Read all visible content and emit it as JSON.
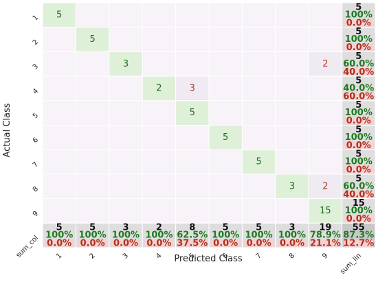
{
  "chart_data": {
    "type": "heatmap",
    "title": "",
    "xlabel": "Predicted Class",
    "ylabel": "Actual Class",
    "x_tick_labels": [
      "1",
      "2",
      "3",
      "4",
      "5",
      "6",
      "7",
      "8",
      "9",
      "sum_lin"
    ],
    "y_tick_labels": [
      "1",
      "2",
      "3",
      "4",
      "5",
      "6",
      "7",
      "8",
      "9",
      "sum_col"
    ],
    "matrix": [
      [
        5,
        0,
        0,
        0,
        0,
        0,
        0,
        0,
        0
      ],
      [
        0,
        5,
        0,
        0,
        0,
        0,
        0,
        0,
        0
      ],
      [
        0,
        0,
        3,
        0,
        0,
        0,
        0,
        0,
        2
      ],
      [
        0,
        0,
        0,
        2,
        3,
        0,
        0,
        0,
        0
      ],
      [
        0,
        0,
        0,
        0,
        5,
        0,
        0,
        0,
        0
      ],
      [
        0,
        0,
        0,
        0,
        0,
        5,
        0,
        0,
        0
      ],
      [
        0,
        0,
        0,
        0,
        0,
        0,
        5,
        0,
        0
      ],
      [
        0,
        0,
        0,
        0,
        0,
        0,
        0,
        3,
        2
      ],
      [
        0,
        0,
        0,
        0,
        0,
        0,
        0,
        0,
        15
      ]
    ],
    "row_totals": [
      {
        "count": "5",
        "correct": "100%",
        "error": "0.0%"
      },
      {
        "count": "5",
        "correct": "100%",
        "error": "0.0%"
      },
      {
        "count": "5",
        "correct": "60.0%",
        "error": "40.0%"
      },
      {
        "count": "5",
        "correct": "40.0%",
        "error": "60.0%"
      },
      {
        "count": "5",
        "correct": "100%",
        "error": "0.0%"
      },
      {
        "count": "5",
        "correct": "100%",
        "error": "0.0%"
      },
      {
        "count": "5",
        "correct": "100%",
        "error": "0.0%"
      },
      {
        "count": "5",
        "correct": "60.0%",
        "error": "40.0%"
      },
      {
        "count": "15",
        "correct": "100%",
        "error": "0.0%"
      }
    ],
    "col_totals": [
      {
        "count": "5",
        "correct": "100%",
        "error": "0.0%"
      },
      {
        "count": "5",
        "correct": "100%",
        "error": "0.0%"
      },
      {
        "count": "3",
        "correct": "100%",
        "error": "0.0%"
      },
      {
        "count": "2",
        "correct": "100%",
        "error": "0.0%"
      },
      {
        "count": "8",
        "correct": "62.5%",
        "error": "37.5%"
      },
      {
        "count": "5",
        "correct": "100%",
        "error": "0.0%"
      },
      {
        "count": "5",
        "correct": "100%",
        "error": "0.0%"
      },
      {
        "count": "3",
        "correct": "100%",
        "error": "0.0%"
      },
      {
        "count": "19",
        "correct": "78.9%",
        "error": "21.1%"
      }
    ],
    "grand_total": {
      "count": "55",
      "correct": "87.3%",
      "error": "12.7%"
    },
    "colors": {
      "diagonal": "#dff0d8",
      "offdiag_error": "#f0eaf3",
      "empty": "#f7f3f8",
      "totals": "#dedede",
      "grand": "#c8c8c8",
      "correct_text": "#1f7a1f",
      "error_text": "#b0301e",
      "count_text": "#111111",
      "error_bg": "#f3d2d2",
      "diag_text": "#1f6d1f",
      "offdiag_text": "#b03a2e",
      "grid": "#ffffff"
    }
  }
}
